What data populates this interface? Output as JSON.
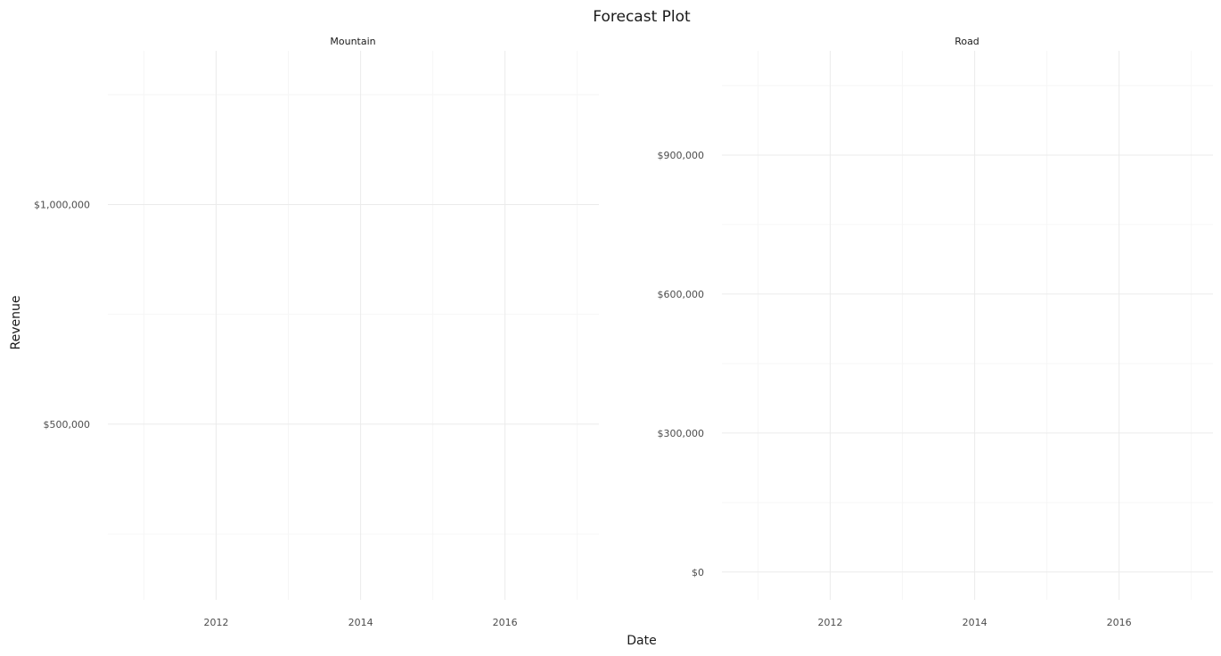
{
  "chart_data": {
    "type": "line",
    "title": "Forecast Plot",
    "xlabel": "Date",
    "ylabel": "Revenue",
    "grid": true,
    "legend": "none",
    "panels": [
      {
        "facet": "Mountain",
        "xlim": [
          2010.5,
          2017.3
        ],
        "ylim": [
          100000,
          1350000
        ],
        "x_ticks": [
          2012,
          2014,
          2016
        ],
        "x_tick_labels": [
          "2012",
          "2014",
          "2016"
        ],
        "y_ticks": [
          500000,
          1000000
        ],
        "y_tick_labels": [
          "$500,000",
          "$1,000,000"
        ],
        "series": []
      },
      {
        "facet": "Road",
        "xlim": [
          2010.5,
          2017.3
        ],
        "ylim": [
          -60000,
          1125000
        ],
        "x_ticks": [
          2012,
          2014,
          2016
        ],
        "x_tick_labels": [
          "2012",
          "2014",
          "2016"
        ],
        "y_ticks": [
          0,
          300000,
          600000,
          900000
        ],
        "y_tick_labels": [
          "$0",
          "$300,000",
          "$600,000",
          "$900,000"
        ],
        "series": []
      }
    ]
  }
}
